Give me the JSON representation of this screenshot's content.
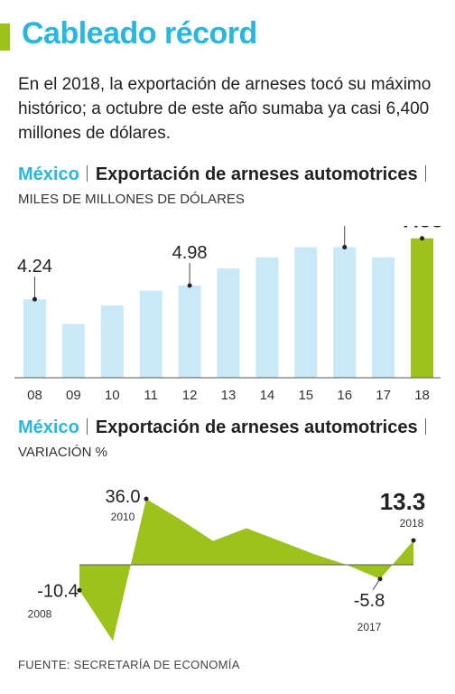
{
  "headline": "Cableado récord",
  "intro": "En el 2018, la exportación de arneses tocó su máximo histórico; a octubre de este año sumaba ya casi 6,400 millones de dólares.",
  "section1": {
    "country": "México",
    "title": "Exportación de arneses automotrices",
    "unit": "MILES DE MILLONES DE DÓLARES"
  },
  "section2": {
    "country": "México",
    "title": "Exportación de arneses automotrices",
    "unit": "VARIACIÓN %"
  },
  "source": "FUENTE: SECRETARÍA DE ECONOMÍA",
  "colors": {
    "accent": "#9bc31c",
    "headline": "#29b6e0",
    "bar": "#c9e8f8",
    "highlight": "#9bc31c"
  },
  "chart_data": [
    {
      "type": "bar",
      "categories": [
        "08",
        "09",
        "10",
        "11",
        "12",
        "13",
        "14",
        "15",
        "16",
        "17",
        "18"
      ],
      "values": [
        4.24,
        2.9,
        3.9,
        4.7,
        4.98,
        5.9,
        6.5,
        7.05,
        7.05,
        6.5,
        7.53
      ],
      "labels": [
        {
          "index": 0,
          "text": "4.24"
        },
        {
          "index": 4,
          "text": "4.98"
        },
        {
          "index": 8,
          "text": "7.05"
        },
        {
          "index": 10,
          "text": "7.53",
          "bold": true
        }
      ],
      "highlight_index": 10,
      "ylim": [
        0,
        8.2
      ]
    },
    {
      "type": "area",
      "x": [
        "2008",
        "2009",
        "2010",
        "2011",
        "2012",
        "2013",
        "2014",
        "2015",
        "2016",
        "2017",
        "2018"
      ],
      "values": [
        -10.4,
        -31.0,
        36.0,
        25.0,
        13.0,
        20.0,
        13.0,
        6.0,
        0.0,
        -5.8,
        13.3
      ],
      "labels": [
        {
          "index": 0,
          "text": "-10.4",
          "year": "2008"
        },
        {
          "index": 2,
          "text": "36.0",
          "year": "2010"
        },
        {
          "index": 9,
          "text": "-5.8",
          "year": "2017"
        },
        {
          "index": 10,
          "text": "13.3",
          "year": "2018",
          "bold": true
        }
      ],
      "ylim": [
        -32,
        40
      ]
    }
  ]
}
